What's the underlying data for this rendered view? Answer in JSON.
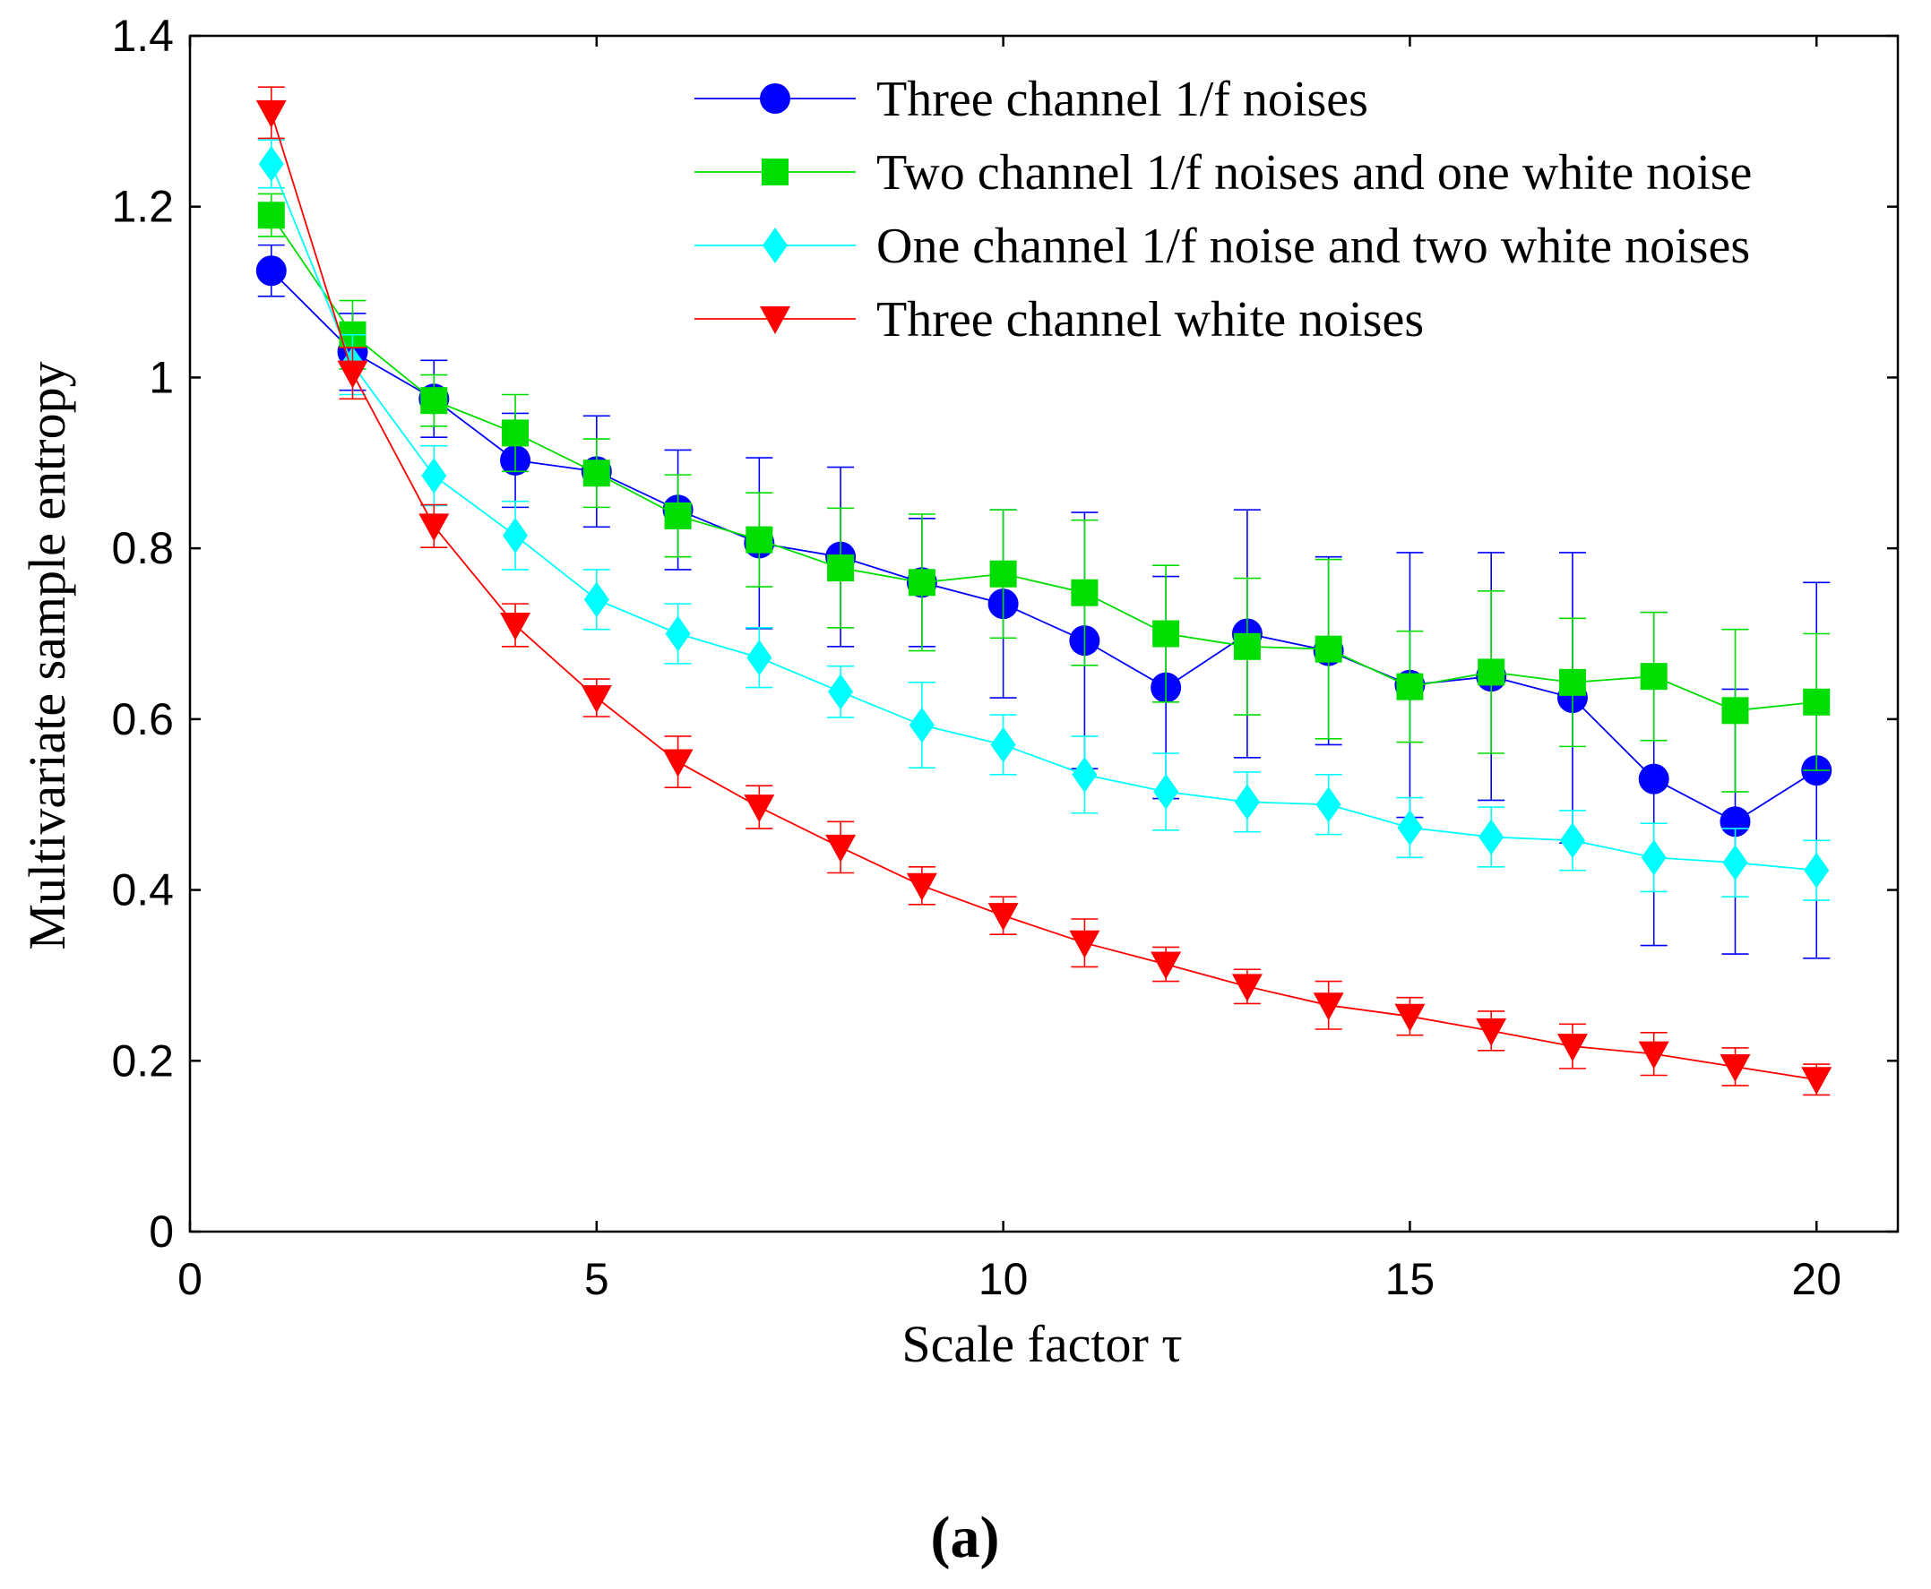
{
  "chart_data": {
    "type": "line",
    "xlabel": "Scale factor τ",
    "ylabel": "Multivariate sample entropy",
    "xlim": [
      0,
      21
    ],
    "ylim": [
      0,
      1.4
    ],
    "xticks": [
      0,
      5,
      10,
      15,
      20
    ],
    "yticks": [
      0,
      0.2,
      0.4,
      0.6,
      0.8,
      1,
      1.2,
      1.4
    ],
    "xtick_labels": [
      "0",
      "5",
      "10",
      "15",
      "20"
    ],
    "ytick_labels": [
      "0",
      "0.2",
      "0.4",
      "0.6",
      "0.8",
      "1",
      "1.2",
      "1.4"
    ],
    "legend_position": "top-right",
    "grid": false,
    "error_bars": true,
    "x": [
      1,
      2,
      3,
      4,
      5,
      6,
      7,
      8,
      9,
      10,
      11,
      12,
      13,
      14,
      15,
      16,
      17,
      18,
      19,
      20
    ],
    "series": [
      {
        "name": "Three channel 1/f noises",
        "color": "#0000ff",
        "marker": "circle",
        "values": [
          1.125,
          1.03,
          0.975,
          0.903,
          0.89,
          0.845,
          0.806,
          0.79,
          0.76,
          0.735,
          0.692,
          0.637,
          0.7,
          0.68,
          0.64,
          0.65,
          0.625,
          0.53,
          0.48,
          0.54
        ],
        "errors": [
          0.03,
          0.045,
          0.045,
          0.055,
          0.065,
          0.07,
          0.1,
          0.105,
          0.075,
          0.11,
          0.15,
          0.13,
          0.145,
          0.11,
          0.155,
          0.145,
          0.17,
          0.195,
          0.155,
          0.22
        ]
      },
      {
        "name": "Two channel 1/f noises and one white noise",
        "color": "#00dd00",
        "marker": "square",
        "values": [
          1.19,
          1.05,
          0.973,
          0.935,
          0.888,
          0.838,
          0.81,
          0.777,
          0.76,
          0.77,
          0.748,
          0.7,
          0.685,
          0.682,
          0.638,
          0.655,
          0.643,
          0.65,
          0.61,
          0.62
        ],
        "errors": [
          0.025,
          0.04,
          0.03,
          0.045,
          0.04,
          0.048,
          0.055,
          0.07,
          0.08,
          0.075,
          0.085,
          0.08,
          0.08,
          0.105,
          0.065,
          0.095,
          0.075,
          0.075,
          0.095,
          0.08
        ]
      },
      {
        "name": "One channel 1/f noise and two white noises",
        "color": "#00ffff",
        "marker": "diamond",
        "values": [
          1.25,
          1.015,
          0.885,
          0.815,
          0.74,
          0.7,
          0.672,
          0.632,
          0.593,
          0.57,
          0.535,
          0.515,
          0.503,
          0.5,
          0.473,
          0.462,
          0.458,
          0.438,
          0.432,
          0.423
        ],
        "errors": [
          0.028,
          0.035,
          0.035,
          0.04,
          0.035,
          0.035,
          0.035,
          0.03,
          0.05,
          0.035,
          0.045,
          0.045,
          0.035,
          0.035,
          0.035,
          0.035,
          0.035,
          0.04,
          0.04,
          0.035
        ]
      },
      {
        "name": "Three channel white noises",
        "color": "#ff0000",
        "marker": "triangle-down",
        "values": [
          1.31,
          1.005,
          0.826,
          0.71,
          0.625,
          0.55,
          0.497,
          0.45,
          0.405,
          0.37,
          0.338,
          0.313,
          0.287,
          0.265,
          0.252,
          0.235,
          0.217,
          0.208,
          0.193,
          0.178
        ],
        "errors": [
          0.03,
          0.03,
          0.025,
          0.025,
          0.022,
          0.03,
          0.025,
          0.03,
          0.022,
          0.022,
          0.028,
          0.02,
          0.02,
          0.028,
          0.022,
          0.023,
          0.026,
          0.025,
          0.022,
          0.018
        ]
      }
    ]
  },
  "caption": "(a)"
}
